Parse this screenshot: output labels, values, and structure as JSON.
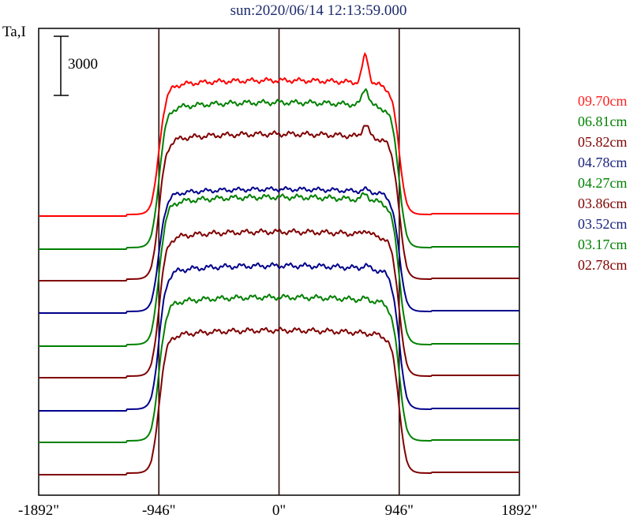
{
  "chart_data": {
    "type": "line",
    "title": "sun:2020/06/14 12:13:59.000",
    "ylabel": "Ta,I",
    "scale_bar_label": "3000",
    "x_ticks": [
      "-1892\"",
      "-946\"",
      "0\"",
      "946\"",
      "1892\""
    ],
    "x_tick_values": [
      -1892,
      -946,
      0,
      946,
      1892
    ],
    "xlim": [
      -1892,
      1892
    ],
    "vertical_lines_at": [
      -946,
      0,
      946
    ],
    "series": [
      {
        "name": "09.70cm",
        "color": "#ff0000",
        "baseline": 272,
        "height": 170,
        "peak": 35
      },
      {
        "name": "06.81cm",
        "color": "#008000",
        "baseline": 314,
        "height": 184,
        "peak": 22
      },
      {
        "name": "05.82cm",
        "color": "#800000",
        "baseline": 354,
        "height": 184,
        "peak": 16
      },
      {
        "name": "04.78cm",
        "color": "#00008b",
        "baseline": 395,
        "height": 155,
        "peak": 3
      },
      {
        "name": "04.27cm",
        "color": "#008000",
        "baseline": 437,
        "height": 187,
        "peak": 8
      },
      {
        "name": "03.86cm",
        "color": "#800000",
        "baseline": 477,
        "height": 183,
        "peak": 6
      },
      {
        "name": "03.52cm",
        "color": "#00008b",
        "baseline": 519,
        "height": 182,
        "peak": 4
      },
      {
        "name": "03.17cm",
        "color": "#008000",
        "baseline": 559,
        "height": 182,
        "peak": 2
      },
      {
        "name": "02.78cm",
        "color": "#800000",
        "baseline": 600,
        "height": 181,
        "peak": 0
      }
    ]
  }
}
